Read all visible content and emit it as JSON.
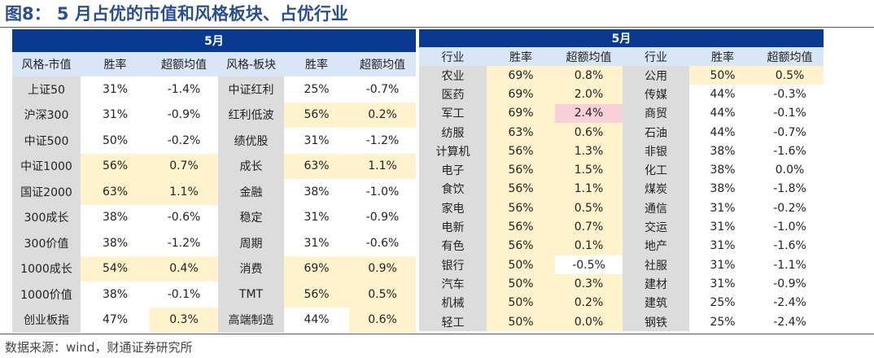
{
  "title": "图8：  5 月占优的市值和风格板块、占优行业",
  "source": "数据来源：wind，财通证券研究所",
  "left_table": {
    "month": "5月",
    "headers": [
      "风格-市值",
      "胜率",
      "超额均值",
      "风格-板块",
      "胜率",
      "超额均值"
    ],
    "rows": [
      [
        {
          "v": "上证50",
          "c": "g"
        },
        {
          "v": "31%",
          "c": "w"
        },
        {
          "v": "-1.4%",
          "c": "w"
        },
        {
          "v": "中证红利",
          "c": "g"
        },
        {
          "v": "25%",
          "c": "w"
        },
        {
          "v": "-0.7%",
          "c": "w"
        }
      ],
      [
        {
          "v": "沪深300",
          "c": "g"
        },
        {
          "v": "31%",
          "c": "w"
        },
        {
          "v": "-0.9%",
          "c": "w"
        },
        {
          "v": "红利低波",
          "c": "g"
        },
        {
          "v": "56%",
          "c": "y"
        },
        {
          "v": "0.2%",
          "c": "y"
        }
      ],
      [
        {
          "v": "中证500",
          "c": "g"
        },
        {
          "v": "50%",
          "c": "w"
        },
        {
          "v": "-0.2%",
          "c": "w"
        },
        {
          "v": "绩优股",
          "c": "g"
        },
        {
          "v": "31%",
          "c": "w"
        },
        {
          "v": "-1.2%",
          "c": "w"
        }
      ],
      [
        {
          "v": "中证1000",
          "c": "g"
        },
        {
          "v": "56%",
          "c": "y"
        },
        {
          "v": "0.7%",
          "c": "y"
        },
        {
          "v": "成长",
          "c": "g"
        },
        {
          "v": "63%",
          "c": "y"
        },
        {
          "v": "1.1%",
          "c": "y"
        }
      ],
      [
        {
          "v": "国证2000",
          "c": "g"
        },
        {
          "v": "63%",
          "c": "y"
        },
        {
          "v": "1.1%",
          "c": "y"
        },
        {
          "v": "金融",
          "c": "g"
        },
        {
          "v": "38%",
          "c": "w"
        },
        {
          "v": "-1.0%",
          "c": "w"
        }
      ],
      [
        {
          "v": "300成长",
          "c": "g"
        },
        {
          "v": "38%",
          "c": "w"
        },
        {
          "v": "-0.6%",
          "c": "w"
        },
        {
          "v": "稳定",
          "c": "g"
        },
        {
          "v": "31%",
          "c": "w"
        },
        {
          "v": "-0.9%",
          "c": "w"
        }
      ],
      [
        {
          "v": "300价值",
          "c": "g"
        },
        {
          "v": "38%",
          "c": "w"
        },
        {
          "v": "-1.2%",
          "c": "w"
        },
        {
          "v": "周期",
          "c": "g"
        },
        {
          "v": "31%",
          "c": "w"
        },
        {
          "v": "-0.6%",
          "c": "w"
        }
      ],
      [
        {
          "v": "1000成长",
          "c": "g"
        },
        {
          "v": "54%",
          "c": "y"
        },
        {
          "v": "0.4%",
          "c": "y"
        },
        {
          "v": "消费",
          "c": "g"
        },
        {
          "v": "69%",
          "c": "y"
        },
        {
          "v": "0.9%",
          "c": "y"
        }
      ],
      [
        {
          "v": "1000价值",
          "c": "g"
        },
        {
          "v": "38%",
          "c": "w"
        },
        {
          "v": "-0.1%",
          "c": "w"
        },
        {
          "v": "TMT",
          "c": "g"
        },
        {
          "v": "56%",
          "c": "y"
        },
        {
          "v": "0.5%",
          "c": "y"
        }
      ],
      [
        {
          "v": "创业板指",
          "c": "g"
        },
        {
          "v": "47%",
          "c": "w"
        },
        {
          "v": "0.3%",
          "c": "y"
        },
        {
          "v": "高端制造",
          "c": "g"
        },
        {
          "v": "44%",
          "c": "w"
        },
        {
          "v": "0.6%",
          "c": "y"
        }
      ]
    ]
  },
  "right_table": {
    "month": "5月",
    "headers": [
      "行业",
      "胜率",
      "超额均值",
      "行业",
      "胜率",
      "超额均值"
    ],
    "rows": [
      [
        {
          "v": "农业",
          "c": "g"
        },
        {
          "v": "69%",
          "c": "y"
        },
        {
          "v": "0.8%",
          "c": "y"
        },
        {
          "v": "公用",
          "c": "g"
        },
        {
          "v": "50%",
          "c": "y"
        },
        {
          "v": "0.5%",
          "c": "y"
        }
      ],
      [
        {
          "v": "医药",
          "c": "g"
        },
        {
          "v": "69%",
          "c": "y"
        },
        {
          "v": "2.0%",
          "c": "y"
        },
        {
          "v": "传媒",
          "c": "g"
        },
        {
          "v": "44%",
          "c": "w"
        },
        {
          "v": "-0.3%",
          "c": "w"
        }
      ],
      [
        {
          "v": "军工",
          "c": "g"
        },
        {
          "v": "69%",
          "c": "y"
        },
        {
          "v": "2.4%",
          "c": "p"
        },
        {
          "v": "商贸",
          "c": "g"
        },
        {
          "v": "44%",
          "c": "w"
        },
        {
          "v": "-0.1%",
          "c": "w"
        }
      ],
      [
        {
          "v": "纺服",
          "c": "g"
        },
        {
          "v": "63%",
          "c": "y"
        },
        {
          "v": "0.6%",
          "c": "y"
        },
        {
          "v": "石油",
          "c": "g"
        },
        {
          "v": "44%",
          "c": "w"
        },
        {
          "v": "-0.7%",
          "c": "w"
        }
      ],
      [
        {
          "v": "计算机",
          "c": "g"
        },
        {
          "v": "56%",
          "c": "y"
        },
        {
          "v": "1.3%",
          "c": "y"
        },
        {
          "v": "非银",
          "c": "g"
        },
        {
          "v": "38%",
          "c": "w"
        },
        {
          "v": "-1.6%",
          "c": "w"
        }
      ],
      [
        {
          "v": "电子",
          "c": "g"
        },
        {
          "v": "56%",
          "c": "y"
        },
        {
          "v": "1.5%",
          "c": "y"
        },
        {
          "v": "化工",
          "c": "g"
        },
        {
          "v": "38%",
          "c": "w"
        },
        {
          "v": "0.0%",
          "c": "w"
        }
      ],
      [
        {
          "v": "食饮",
          "c": "g"
        },
        {
          "v": "56%",
          "c": "y"
        },
        {
          "v": "1.1%",
          "c": "y"
        },
        {
          "v": "煤炭",
          "c": "g"
        },
        {
          "v": "38%",
          "c": "w"
        },
        {
          "v": "-1.8%",
          "c": "w"
        }
      ],
      [
        {
          "v": "家电",
          "c": "g"
        },
        {
          "v": "56%",
          "c": "y"
        },
        {
          "v": "0.5%",
          "c": "y"
        },
        {
          "v": "通信",
          "c": "g"
        },
        {
          "v": "31%",
          "c": "w"
        },
        {
          "v": "-0.2%",
          "c": "w"
        }
      ],
      [
        {
          "v": "电新",
          "c": "g"
        },
        {
          "v": "56%",
          "c": "y"
        },
        {
          "v": "0.7%",
          "c": "y"
        },
        {
          "v": "交运",
          "c": "g"
        },
        {
          "v": "31%",
          "c": "w"
        },
        {
          "v": "-1.0%",
          "c": "w"
        }
      ],
      [
        {
          "v": "有色",
          "c": "g"
        },
        {
          "v": "56%",
          "c": "y"
        },
        {
          "v": "0.1%",
          "c": "y"
        },
        {
          "v": "地产",
          "c": "g"
        },
        {
          "v": "31%",
          "c": "w"
        },
        {
          "v": "-1.6%",
          "c": "w"
        }
      ],
      [
        {
          "v": "银行",
          "c": "g"
        },
        {
          "v": "50%",
          "c": "y"
        },
        {
          "v": "-0.5%",
          "c": "w"
        },
        {
          "v": "社服",
          "c": "g"
        },
        {
          "v": "31%",
          "c": "w"
        },
        {
          "v": "-1.1%",
          "c": "w"
        }
      ],
      [
        {
          "v": "汽车",
          "c": "g"
        },
        {
          "v": "50%",
          "c": "y"
        },
        {
          "v": "0.3%",
          "c": "y"
        },
        {
          "v": "建材",
          "c": "g"
        },
        {
          "v": "31%",
          "c": "w"
        },
        {
          "v": "-0.9%",
          "c": "w"
        }
      ],
      [
        {
          "v": "机械",
          "c": "g"
        },
        {
          "v": "50%",
          "c": "y"
        },
        {
          "v": "0.2%",
          "c": "y"
        },
        {
          "v": "建筑",
          "c": "g"
        },
        {
          "v": "25%",
          "c": "w"
        },
        {
          "v": "-2.4%",
          "c": "w"
        }
      ],
      [
        {
          "v": "轻工",
          "c": "g"
        },
        {
          "v": "50%",
          "c": "y"
        },
        {
          "v": "0.0%",
          "c": "y"
        },
        {
          "v": "钢铁",
          "c": "g"
        },
        {
          "v": "25%",
          "c": "w"
        },
        {
          "v": "-2.4%",
          "c": "w"
        }
      ]
    ]
  }
}
